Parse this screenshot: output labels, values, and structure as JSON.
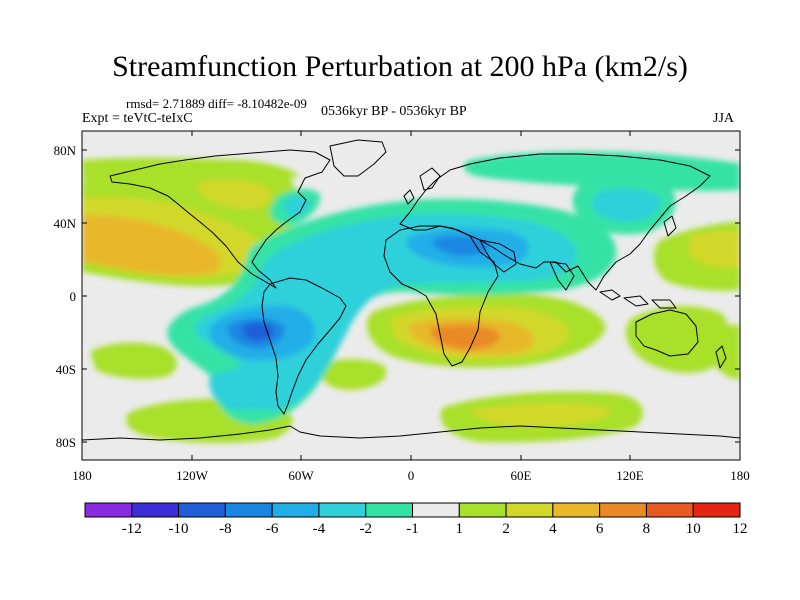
{
  "title": "Streamfunction Perturbation at 200 hPa (km2/s)",
  "stats": "rmsd= 2.71889 diff= -8.10482e-09",
  "experiment": "Expt = teVtC-teIxC",
  "period": "0536kyr BP - 0536kyr BP",
  "season": "JJA",
  "lat_ticks": [
    "80N",
    "40N",
    "0",
    "40S",
    "80S"
  ],
  "lon_ticks": [
    "180",
    "120W",
    "60W",
    "0",
    "60E",
    "120E",
    "180"
  ],
  "colorbar": {
    "labels": [
      "-12",
      "-10",
      "-8",
      "-6",
      "-4",
      "-2",
      "-1",
      "1",
      "2",
      "4",
      "6",
      "8",
      "10",
      "12"
    ],
    "colors": [
      "#8a2be2",
      "#3a2fd6",
      "#1e5fd8",
      "#1a86e3",
      "#21aee8",
      "#2fd0da",
      "#35e2a6",
      "#ebebeb",
      "#a8e02c",
      "#d2d82a",
      "#e8b82a",
      "#ea8a25",
      "#e95a20",
      "#e52412"
    ]
  }
}
